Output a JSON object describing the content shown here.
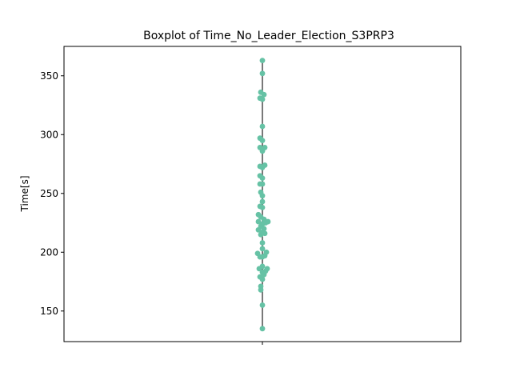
{
  "chart_data": {
    "type": "box",
    "title": "Boxplot of Time_No_Leader_Election_S3PRP3",
    "xlabel": "",
    "ylabel": "Time[s]",
    "ylim": [
      124,
      375
    ],
    "yticks": [
      150,
      200,
      250,
      300,
      350
    ],
    "grid": false,
    "categories": [
      ""
    ],
    "box": {
      "min": 135,
      "q1": 198,
      "median": 225,
      "q3": 270,
      "max": 363
    },
    "points": [
      {
        "x": 0,
        "y": 135
      },
      {
        "x": 0,
        "y": 155
      },
      {
        "x": -0.02,
        "y": 168
      },
      {
        "x": -0.02,
        "y": 171
      },
      {
        "x": 0,
        "y": 177
      },
      {
        "x": -0.03,
        "y": 179
      },
      {
        "x": 0.02,
        "y": 181
      },
      {
        "x": 0,
        "y": 183
      },
      {
        "x": 0.04,
        "y": 184
      },
      {
        "x": -0.04,
        "y": 186
      },
      {
        "x": 0.06,
        "y": 186
      },
      {
        "x": 0,
        "y": 188
      },
      {
        "x": -0.03,
        "y": 196
      },
      {
        "x": 0,
        "y": 196
      },
      {
        "x": 0.03,
        "y": 197
      },
      {
        "x": -0.06,
        "y": 199
      },
      {
        "x": 0.05,
        "y": 200
      },
      {
        "x": 0,
        "y": 203
      },
      {
        "x": 0,
        "y": 208
      },
      {
        "x": -0.02,
        "y": 215
      },
      {
        "x": 0.03,
        "y": 216
      },
      {
        "x": 0,
        "y": 217
      },
      {
        "x": -0.05,
        "y": 219
      },
      {
        "x": 0.02,
        "y": 220
      },
      {
        "x": -0.02,
        "y": 222
      },
      {
        "x": 0,
        "y": 224
      },
      {
        "x": 0.04,
        "y": 225
      },
      {
        "x": -0.05,
        "y": 226
      },
      {
        "x": 0.07,
        "y": 226
      },
      {
        "x": 0.02,
        "y": 228
      },
      {
        "x": -0.02,
        "y": 230
      },
      {
        "x": -0.05,
        "y": 232
      },
      {
        "x": 0,
        "y": 238
      },
      {
        "x": -0.03,
        "y": 239
      },
      {
        "x": 0,
        "y": 243
      },
      {
        "x": 0,
        "y": 248
      },
      {
        "x": -0.02,
        "y": 251
      },
      {
        "x": 0,
        "y": 258
      },
      {
        "x": -0.03,
        "y": 258
      },
      {
        "x": 0,
        "y": 263
      },
      {
        "x": -0.03,
        "y": 265
      },
      {
        "x": 0,
        "y": 272
      },
      {
        "x": -0.03,
        "y": 273
      },
      {
        "x": 0.03,
        "y": 274
      },
      {
        "x": 0,
        "y": 286
      },
      {
        "x": -0.03,
        "y": 289
      },
      {
        "x": 0.03,
        "y": 289
      },
      {
        "x": 0,
        "y": 295
      },
      {
        "x": -0.03,
        "y": 297
      },
      {
        "x": 0,
        "y": 307
      },
      {
        "x": 0,
        "y": 330
      },
      {
        "x": -0.03,
        "y": 331
      },
      {
        "x": 0.02,
        "y": 334
      },
      {
        "x": -0.02,
        "y": 336
      },
      {
        "x": 0,
        "y": 352
      },
      {
        "x": 0,
        "y": 363
      }
    ],
    "colors": {
      "point": "#66c2a5",
      "whisker": "#4d4d4d",
      "axis": "#000000"
    }
  }
}
